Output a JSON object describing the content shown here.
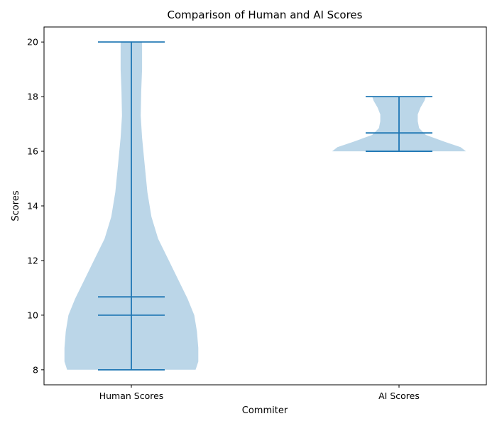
{
  "chart_data": {
    "type": "violin",
    "title": "Comparison of Human and AI Scores",
    "xlabel": "Commiter",
    "ylabel": "Scores",
    "categories": [
      "Human Scores",
      "AI Scores"
    ],
    "ylim": [
      7.45,
      20.55
    ],
    "yticks": [
      8,
      10,
      12,
      14,
      16,
      18,
      20
    ],
    "grid": false,
    "fill_color": "#1f77b4",
    "fill_opacity": 0.3,
    "line_color": "#1f77b4",
    "violins": [
      {
        "category": "Human Scores",
        "min": 8,
        "max": 20,
        "mean": 10.67,
        "median": 10,
        "density_profile": [
          {
            "y": 8.0,
            "half_width": 0.24
          },
          {
            "y": 8.3,
            "half_width": 0.25
          },
          {
            "y": 8.8,
            "half_width": 0.25
          },
          {
            "y": 9.4,
            "half_width": 0.245
          },
          {
            "y": 10.0,
            "half_width": 0.235
          },
          {
            "y": 10.6,
            "half_width": 0.21
          },
          {
            "y": 11.3,
            "half_width": 0.175
          },
          {
            "y": 12.0,
            "half_width": 0.14
          },
          {
            "y": 12.8,
            "half_width": 0.1
          },
          {
            "y": 13.6,
            "half_width": 0.075
          },
          {
            "y": 14.5,
            "half_width": 0.06
          },
          {
            "y": 15.5,
            "half_width": 0.05
          },
          {
            "y": 16.5,
            "half_width": 0.04
          },
          {
            "y": 17.3,
            "half_width": 0.035
          },
          {
            "y": 18.2,
            "half_width": 0.037
          },
          {
            "y": 19.0,
            "half_width": 0.04
          },
          {
            "y": 20.0,
            "half_width": 0.04
          }
        ]
      },
      {
        "category": "AI Scores",
        "min": 16,
        "max": 18,
        "mean": 16.67,
        "median": 16.67,
        "density_profile": [
          {
            "y": 16.0,
            "half_width": 0.25
          },
          {
            "y": 16.15,
            "half_width": 0.23
          },
          {
            "y": 16.35,
            "half_width": 0.17
          },
          {
            "y": 16.6,
            "half_width": 0.1
          },
          {
            "y": 16.85,
            "half_width": 0.075
          },
          {
            "y": 17.1,
            "half_width": 0.07
          },
          {
            "y": 17.35,
            "half_width": 0.07
          },
          {
            "y": 17.6,
            "half_width": 0.08
          },
          {
            "y": 17.85,
            "half_width": 0.095
          },
          {
            "y": 18.0,
            "half_width": 0.1
          }
        ]
      }
    ]
  }
}
